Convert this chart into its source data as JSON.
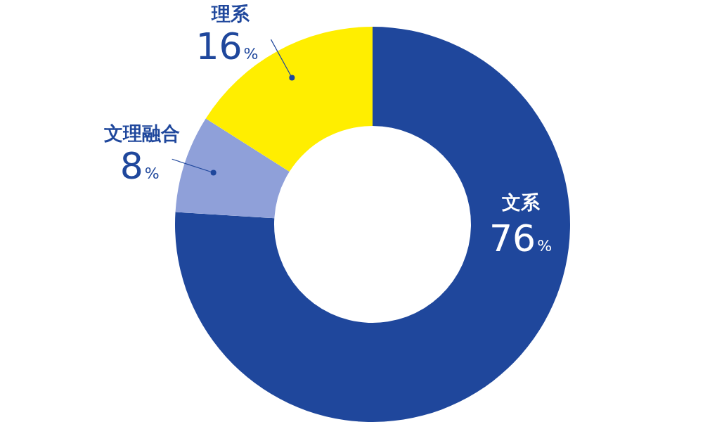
{
  "chart_data": {
    "type": "donut",
    "categories": [
      "文系",
      "文理融合",
      "理系"
    ],
    "values": [
      76,
      8,
      16
    ],
    "colors": [
      "#1f479c",
      "#8fa0d9",
      "#ffee00"
    ],
    "value_labels": [
      "76%",
      "8%",
      "16%"
    ]
  }
}
